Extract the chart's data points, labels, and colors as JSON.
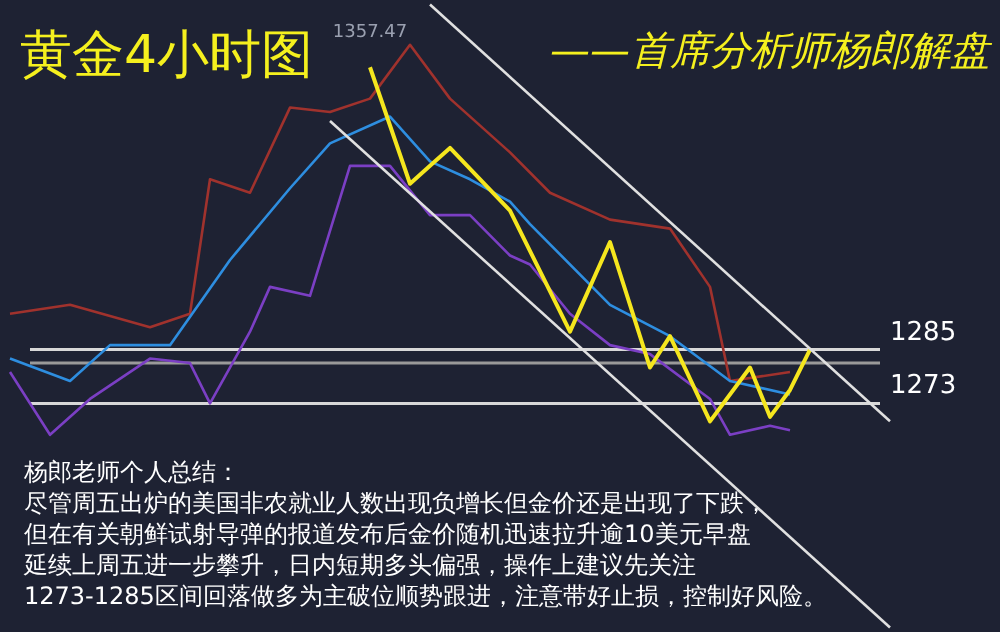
{
  "chart_data": {
    "type": "line",
    "title": "黄金4小时图",
    "subtitle": "——首席分析师杨郎解盘",
    "categories": [
      null,
      null,
      null,
      null,
      null,
      null,
      null,
      null,
      null,
      null,
      null,
      null,
      null,
      null,
      null,
      null,
      null,
      null,
      null,
      null,
      null,
      null,
      null,
      null,
      null,
      null,
      null,
      null,
      null,
      null,
      null,
      null,
      null,
      null,
      null,
      null,
      null,
      null,
      null,
      null,
      null,
      null,
      null,
      null,
      null,
      null,
      null,
      null,
      null,
      null
    ],
    "ylim": [
      1222,
      1363
    ],
    "series": [
      {
        "color": "#a0322d",
        "values": [
          1293,
          null,
          null,
          1295,
          null,
          null,
          null,
          1290,
          null,
          1293,
          1323,
          null,
          1320,
          null,
          1339,
          null,
          1338,
          null,
          1341,
          null,
          1353,
          null,
          1341,
          null,
          null,
          1329,
          null,
          1320,
          null,
          null,
          1314,
          null,
          null,
          1312,
          null,
          1299,
          1278,
          null,
          null,
          1280,
          null,
          null,
          null,
          null,
          null,
          null,
          null,
          null,
          null,
          null
        ]
      },
      {
        "color": "#7b3fc4",
        "values": [
          1280,
          null,
          1266,
          null,
          1274,
          null,
          null,
          1283,
          null,
          1282,
          1273,
          null,
          1289,
          1299,
          null,
          1297,
          null,
          1326,
          null,
          1326,
          null,
          1315,
          null,
          1315,
          null,
          1306,
          1304,
          null,
          1293,
          null,
          1286,
          null,
          1284,
          null,
          null,
          1274,
          1266,
          null,
          1268,
          1267,
          null,
          null,
          null,
          null,
          null,
          null,
          null,
          null,
          null,
          null
        ]
      },
      {
        "color": "#2e8ee0",
        "values": [
          1283,
          null,
          null,
          1278,
          null,
          1286,
          null,
          null,
          1286,
          null,
          null,
          1305,
          null,
          null,
          1321,
          null,
          1331,
          null,
          null,
          1337,
          null,
          1327,
          null,
          1323,
          null,
          1318,
          1313,
          null,
          null,
          null,
          1295,
          null,
          null,
          1288,
          null,
          null,
          1278,
          null,
          null,
          1275,
          null,
          null,
          null,
          null,
          null,
          null,
          null,
          null,
          null,
          null
        ]
      },
      {
        "color": "#f5e61e",
        "values": [
          null,
          null,
          null,
          null,
          null,
          null,
          null,
          null,
          null,
          null,
          null,
          null,
          null,
          null,
          null,
          null,
          null,
          null,
          1348,
          null,
          1322,
          1326,
          1330,
          null,
          null,
          1316,
          null,
          null,
          1289,
          null,
          1309,
          null,
          1281,
          1288,
          null,
          1269,
          null,
          1281,
          1270,
          1276,
          1285,
          null,
          null,
          null,
          null,
          null,
          null,
          null,
          null,
          null
        ]
      },
      {
        "color": "#e0e0e0",
        "values": [
          null,
          null,
          null,
          null,
          null,
          null,
          null,
          null,
          null,
          null,
          null,
          null,
          null,
          null,
          null,
          null,
          null,
          null,
          null,
          null,
          null,
          1362,
          null,
          null,
          null,
          null,
          null,
          null,
          null,
          null,
          null,
          null,
          null,
          null,
          null,
          null,
          null,
          null,
          null,
          null,
          null,
          null,
          null,
          null,
          1269,
          null,
          null,
          null,
          null,
          null
        ]
      },
      {
        "color": "#e0e0e0",
        "values": [
          null,
          null,
          null,
          null,
          null,
          null,
          null,
          null,
          null,
          null,
          null,
          null,
          null,
          null,
          null,
          null,
          1336,
          null,
          null,
          null,
          null,
          null,
          null,
          null,
          null,
          null,
          null,
          null,
          null,
          null,
          null,
          null,
          null,
          null,
          null,
          null,
          null,
          null,
          null,
          null,
          null,
          null,
          null,
          null,
          1223,
          null,
          null,
          null,
          null,
          null
        ]
      }
    ],
    "ref_lines": [
      {
        "axis": "y",
        "value": 1285,
        "label": "1285",
        "color": "#d8d8d8"
      },
      {
        "axis": "y",
        "value": 1282,
        "label": null,
        "color": "#9a9a9a"
      },
      {
        "axis": "y",
        "value": 1273,
        "label": "1273",
        "color": "#d8d8d8"
      }
    ],
    "annotations": [
      {
        "text": "1357.47",
        "y": 1348
      },
      "杨郎老师个人总结：",
      "尽管周五出炉的美国非农就业人数出现负增长但金价还是出现了下跌，",
      "但在有关朝鲜试射导弹的报道发布后金价随机迅速拉升逾10美元早盘",
      "延续上周五进一步攀升，日内短期多头偏强，操作上建议先关注",
      "1273-1285区间回落做多为主破位顺势跟进，注意带好止损，控制好风险。"
    ]
  }
}
